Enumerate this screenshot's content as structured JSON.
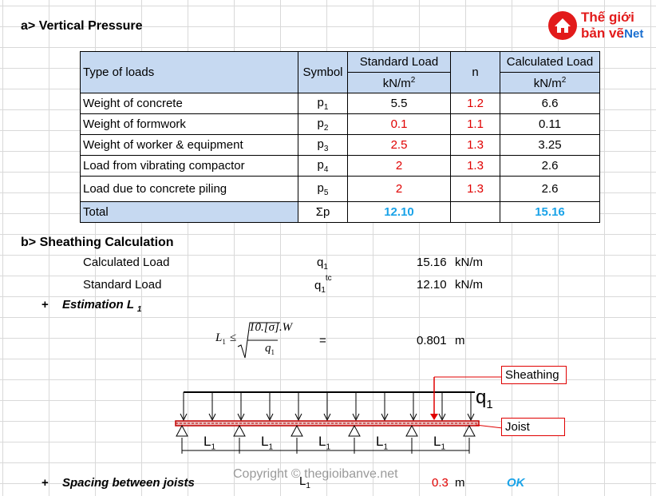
{
  "logo": {
    "line1": "Thế giới",
    "line2": "bản vẽ",
    "suffix": ".Net"
  },
  "section_a": {
    "title": "a> Vertical Pressure"
  },
  "table": {
    "headers": {
      "type": "Type of loads",
      "symbol": "Symbol",
      "standard": "Standard Load",
      "standard_unit": "kN/m",
      "n": "n",
      "calculated": "Calculated Load",
      "calculated_unit": "kN/m",
      "unit_exp": "2"
    },
    "rows": [
      {
        "type": "Weight of concrete",
        "sym": "p",
        "sub": "1",
        "std": "5.5",
        "n": "1.2",
        "calc": "6.6"
      },
      {
        "type": "Weight of formwork",
        "sym": "p",
        "sub": "2",
        "std": "0.1",
        "n": "1.1",
        "calc": "0.11"
      },
      {
        "type": "Weight of worker & equipment",
        "sym": "p",
        "sub": "3",
        "std": "2.5",
        "n": "1.3",
        "calc": "3.25"
      },
      {
        "type": "Load from vibrating compactor",
        "sym": "p",
        "sub": "4",
        "std": "2",
        "n": "1.3",
        "calc": "2.6"
      },
      {
        "type": "Load due to concrete piling",
        "sym": "p",
        "sub": "5",
        "std": "2",
        "n": "1.3",
        "calc": "2.6"
      }
    ],
    "total": {
      "label": "Total",
      "sym": "Σp",
      "std": "12.10",
      "calc": "15.16"
    }
  },
  "section_b": {
    "title": "b> Sheathing Calculation",
    "calc_load": {
      "label": "Calculated Load",
      "sym": "q",
      "sub": "1",
      "value": "15.16",
      "unit": "kN/m"
    },
    "std_load": {
      "label": "Standard Load",
      "sym": "q",
      "sub": "1",
      "sup": "tc",
      "value": "12.10",
      "unit": "kN/m"
    },
    "estimation": {
      "plus": "+",
      "label": "Estimation L",
      "sub": "1"
    },
    "formula": {
      "lhs": "L",
      "lhs_sub": "1",
      "le": "≤",
      "numerator": "10.[σ].W",
      "denominator": "q",
      "den_sub": "1",
      "eq": "=",
      "value": "0.801",
      "unit": "m"
    },
    "diagram": {
      "load_label": "q",
      "load_sub": "1",
      "sheathing": "Sheathing",
      "joist": "Joist",
      "span_label": "L",
      "span_sub": "1",
      "spans": 5
    },
    "spacing": {
      "plus": "+",
      "label": "Spacing between joists",
      "sym": "L",
      "sub": "1",
      "value": "0.3",
      "unit": "m",
      "status": "OK"
    }
  },
  "watermark": {
    "copyright": "Copyright © thegioibanve.net"
  },
  "colors": {
    "header_bg": "#c6d9f1",
    "red": "#e00000",
    "blue": "#1aa3e8",
    "grid": "#d9d9d9"
  }
}
